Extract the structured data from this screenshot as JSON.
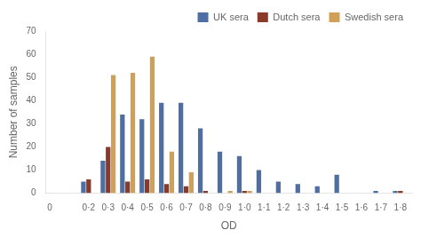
{
  "chart_data": {
    "type": "bar",
    "x": [
      0.2,
      0.3,
      0.4,
      0.5,
      0.6,
      0.7,
      0.8,
      0.9,
      1.0,
      1.1,
      1.2,
      1.3,
      1.4,
      1.5,
      1.6,
      1.7,
      1.8
    ],
    "series": [
      {
        "name": "UK sera",
        "color": "#4d6fa3",
        "values": [
          5,
          14,
          34,
          32,
          39,
          39,
          28,
          18,
          16,
          10,
          5,
          4,
          3,
          8,
          0,
          1,
          1
        ]
      },
      {
        "name": "Dutch sera",
        "color": "#8b3a2a",
        "values": [
          6,
          20,
          5,
          6,
          4,
          3,
          1,
          0,
          1,
          0,
          0,
          0,
          0,
          0,
          0,
          0,
          1
        ]
      },
      {
        "name": "Swedish sera",
        "color": "#cfa055",
        "values": [
          0,
          51,
          52,
          59,
          18,
          9,
          0,
          1,
          1,
          0,
          0,
          0,
          0,
          0,
          0,
          0,
          0
        ]
      }
    ],
    "xlabel": "OD",
    "ylabel": "Number of samples",
    "xlim": [
      -0.02,
      1.86
    ],
    "xticks": [
      0,
      {
        "value": 0.2,
        "label": "0·2"
      },
      {
        "value": 0.3,
        "label": "0·3"
      },
      {
        "value": 0.4,
        "label": "0·4"
      },
      {
        "value": 0.5,
        "label": "0·5"
      },
      {
        "value": 0.6,
        "label": "0·6"
      },
      {
        "value": 0.7,
        "label": "0·7"
      },
      {
        "value": 0.8,
        "label": "0·8"
      },
      {
        "value": 0.9,
        "label": "0·9"
      },
      {
        "value": 1.0,
        "label": "1·0"
      },
      {
        "value": 1.1,
        "label": "1·1"
      },
      {
        "value": 1.2,
        "label": "1·2"
      },
      {
        "value": 1.3,
        "label": "1·3"
      },
      {
        "value": 1.4,
        "label": "1·4"
      },
      {
        "value": 1.5,
        "label": "1·5"
      },
      {
        "value": 1.6,
        "label": "1·6"
      },
      {
        "value": 1.7,
        "label": "1·7"
      },
      {
        "value": 1.8,
        "label": "1·8"
      }
    ],
    "ylim": [
      0,
      70
    ],
    "yticks": [
      0,
      10,
      20,
      30,
      40,
      50,
      60,
      70
    ],
    "grid": false,
    "legend": "upper right"
  }
}
